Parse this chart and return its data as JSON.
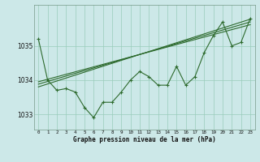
{
  "hours": [
    0,
    1,
    2,
    3,
    4,
    5,
    6,
    7,
    8,
    9,
    10,
    11,
    12,
    13,
    14,
    15,
    16,
    17,
    18,
    19,
    20,
    21,
    22,
    23
  ],
  "pressure": [
    1035.2,
    1034.0,
    1033.7,
    1033.75,
    1033.65,
    1033.2,
    1032.9,
    1033.35,
    1033.35,
    1033.65,
    1034.0,
    1034.25,
    1034.1,
    1033.85,
    1033.85,
    1034.4,
    1033.85,
    1034.1,
    1034.8,
    1035.3,
    1035.7,
    1035.0,
    1035.1,
    1035.8
  ],
  "trend1_x": [
    0,
    23
  ],
  "trend1_y": [
    1033.95,
    1035.62
  ],
  "trend2_x": [
    0,
    23
  ],
  "trend2_y": [
    1033.88,
    1035.7
  ],
  "trend3_x": [
    0,
    23
  ],
  "trend3_y": [
    1033.8,
    1035.78
  ],
  "line_color": "#2d6a2d",
  "bg_color": "#cce8e8",
  "grid_color": "#99ccbb",
  "xlabel": "Graphe pression niveau de la mer (hPa)",
  "yticks": [
    1033,
    1034,
    1035
  ],
  "ylim": [
    1032.55,
    1036.2
  ],
  "xlim": [
    -0.5,
    23.5
  ]
}
